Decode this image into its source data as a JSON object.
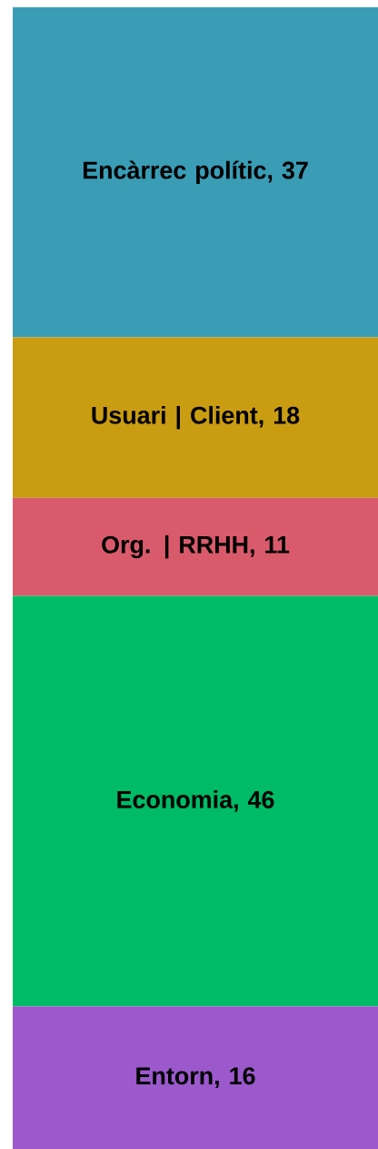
{
  "chart_data": {
    "type": "bar",
    "stacked": true,
    "categories": [
      null
    ],
    "series": [
      {
        "color": "#9b59cc",
        "values": [
          16
        ],
        "value_labels": [
          "Entorn, 16"
        ]
      },
      {
        "color": "#00bb66",
        "values": [
          46
        ],
        "value_labels": [
          "Economia, 46"
        ]
      },
      {
        "color": "#d95b6b",
        "values": [
          11
        ],
        "value_labels": [
          "Org. | RRHH, 11"
        ]
      },
      {
        "color": "#c99c12",
        "values": [
          18
        ],
        "value_labels": [
          "Usuari | Client, 18"
        ]
      },
      {
        "color": "#3a9cb5",
        "values": [
          37
        ],
        "value_labels": [
          "Encàrrec polític, 37"
        ]
      }
    ]
  }
}
